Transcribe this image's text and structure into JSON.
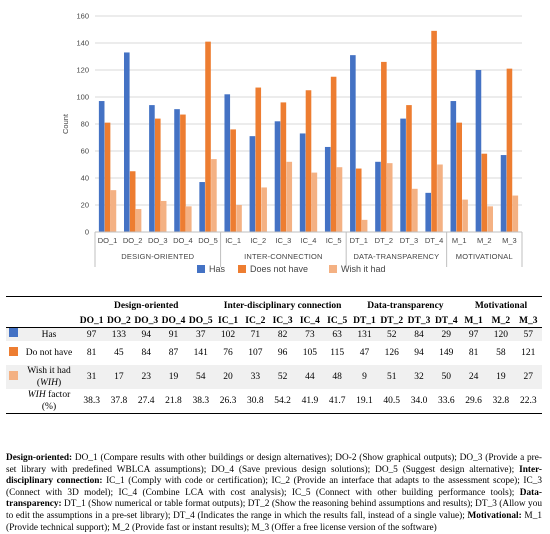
{
  "chart_data": {
    "type": "bar",
    "ylabel": "Count",
    "ylim": [
      0,
      160
    ],
    "yticks": [
      0,
      20,
      40,
      60,
      80,
      100,
      120,
      140,
      160
    ],
    "grid": true,
    "legend_position": "bottom",
    "categories": [
      "DO_1",
      "DO_2",
      "DO_3",
      "DO_4",
      "DO_5",
      "IC_1",
      "IC_2",
      "IC_3",
      "IC_4",
      "IC_5",
      "DT_1",
      "DT_2",
      "DT_3",
      "DT_4",
      "M_1",
      "M_2",
      "M_3"
    ],
    "groups": [
      {
        "label": "DESIGN-ORIENTED",
        "count": 5
      },
      {
        "label": "INTER-CONNECTION",
        "count": 5
      },
      {
        "label": "DATA-TRANSPARENCY",
        "count": 4
      },
      {
        "label": "MOTIVATIONAL",
        "count": 3
      }
    ],
    "series": [
      {
        "name": "Has",
        "color": "#4472C4",
        "values": [
          97,
          133,
          94,
          91,
          37,
          102,
          71,
          82,
          73,
          63,
          131,
          52,
          84,
          29,
          97,
          120,
          57
        ]
      },
      {
        "name": "Does not have",
        "color": "#ED7D31",
        "values": [
          81,
          45,
          84,
          87,
          141,
          76,
          107,
          96,
          105,
          115,
          47,
          126,
          94,
          149,
          81,
          58,
          121
        ]
      },
      {
        "name": "Wish it had",
        "color": "#F4B183",
        "values": [
          31,
          17,
          23,
          19,
          54,
          20,
          33,
          52,
          44,
          48,
          9,
          51,
          32,
          50,
          24,
          19,
          27
        ]
      }
    ]
  },
  "table": {
    "groups": [
      "Design-oriented",
      "Inter-disciplinary connection",
      "Data-transparency",
      "Motivational"
    ],
    "group_spans": [
      5,
      5,
      4,
      3
    ],
    "codes": [
      "DO_1",
      "DO_2",
      "DO_3",
      "DO_4",
      "DO_5",
      "IC_1",
      "IC_2",
      "IC_3",
      "IC_4",
      "IC_5",
      "DT_1",
      "DT_2",
      "DT_3",
      "DT_4",
      "M_1",
      "M_2",
      "M_3"
    ],
    "rows": [
      {
        "label": "Has",
        "color": "#4472C4",
        "values": [
          "97",
          "133",
          "94",
          "91",
          "37",
          "102",
          "71",
          "82",
          "73",
          "63",
          "131",
          "52",
          "84",
          "29",
          "97",
          "120",
          "57"
        ]
      },
      {
        "label": "Do not have",
        "color": "#ED7D31",
        "values": [
          "81",
          "45",
          "84",
          "87",
          "141",
          "76",
          "107",
          "96",
          "105",
          "115",
          "47",
          "126",
          "94",
          "149",
          "81",
          "58",
          "121"
        ]
      },
      {
        "label": "Wish it had (WIH)",
        "color": "#F4B183",
        "values": [
          "31",
          "17",
          "23",
          "19",
          "54",
          "20",
          "33",
          "52",
          "44",
          "48",
          "9",
          "51",
          "32",
          "50",
          "24",
          "19",
          "27"
        ]
      },
      {
        "label": "WIH factor (%)",
        "color": "",
        "values": [
          "38.3",
          "37.8",
          "27.4",
          "21.8",
          "38.3",
          "26.3",
          "30.8",
          "54.2",
          "41.9",
          "41.7",
          "19.1",
          "40.5",
          "34.0",
          "33.6",
          "29.6",
          "32.8",
          "22.3"
        ]
      }
    ]
  },
  "notes": [
    {
      "head": "Design-oriented:",
      "text": " DO_1 (Compare results with other buildings or design alternatives); DO-2 (Show graphical outputs); DO_3 (Provide a pre-set library with predefined WBLCA assumptions); DO_4 (Save previous design solutions); DO_5 (Suggest design alternative); "
    },
    {
      "head": "Inter-disciplinary connection:",
      "text": " IC_1 (Comply with code or certification); IC_2 (Provide an interface that adapts to the assessment scope); IC_3 (Connect with 3D model); IC_4 (Combine LCA with cost analysis); IC_5 (Connect with other building performance tools); "
    },
    {
      "head": "Data-transparency:",
      "text": " DT_1 (Show numerical or table format outputs); DT_2 (Show the reasoning behind assumptions and results); DT_3 (Allow you to edit the assumptions in a pre-set library); DT_4 (Indicates the range in which the results fall, instead of a single value); "
    },
    {
      "head": "Motivational:",
      "text": " M_1 (Provide technical support); M_2 (Provide fast or instant results); M_3 (Offer a free license version of the software)"
    }
  ]
}
